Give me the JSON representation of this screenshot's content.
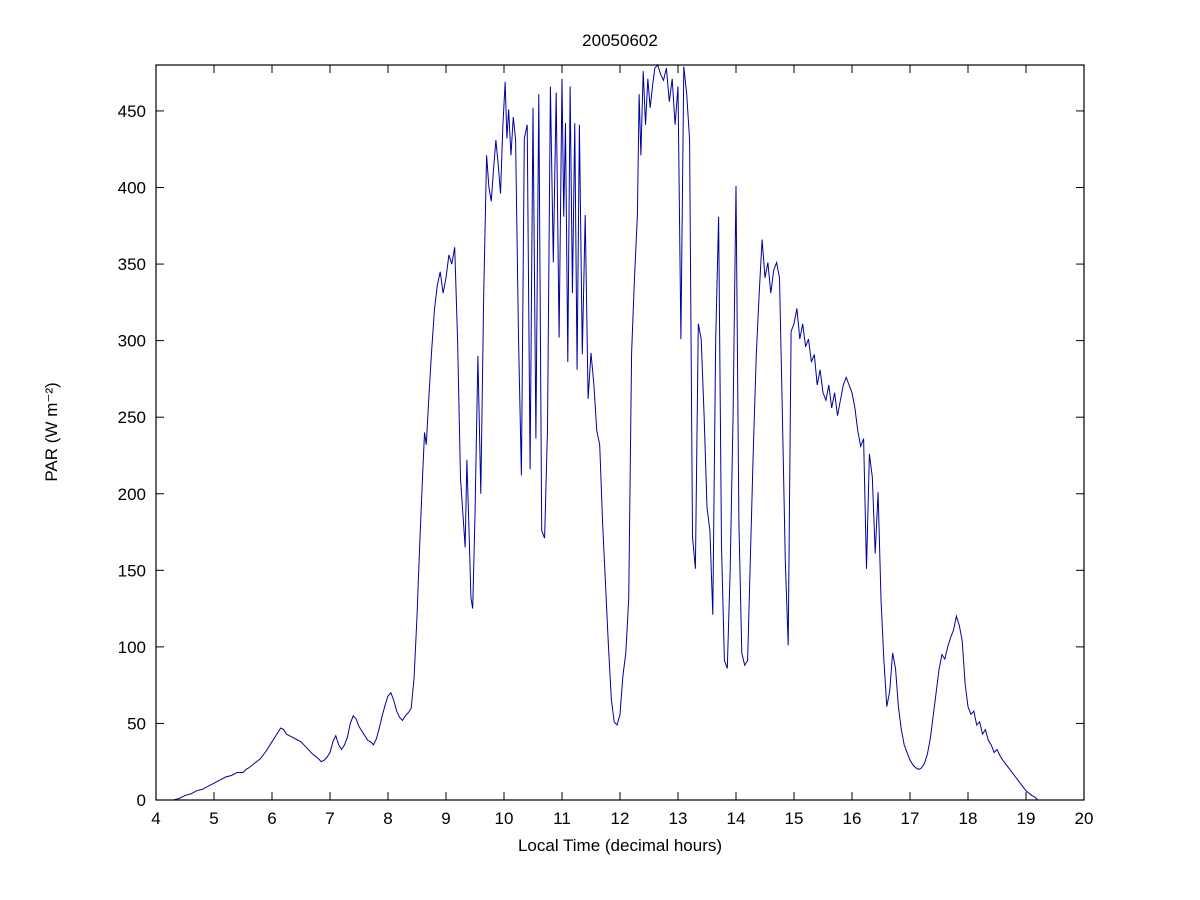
{
  "figure": {
    "background": "#ffffff"
  },
  "chart_data": {
    "type": "line",
    "title": "20050602",
    "xlabel": "Local Time (decimal hours)",
    "ylabel": "PAR (W m⁻²)",
    "xlim": [
      4,
      20
    ],
    "ylim": [
      0,
      480
    ],
    "xticks": [
      4,
      5,
      6,
      7,
      8,
      9,
      10,
      11,
      12,
      13,
      14,
      15,
      16,
      17,
      18,
      19,
      20
    ],
    "yticks": [
      0,
      50,
      100,
      150,
      200,
      250,
      300,
      350,
      400,
      450
    ],
    "grid": false,
    "legend": "none",
    "line_color": "#0000a0",
    "axis_color": "#000000",
    "series": [
      {
        "name": "PAR",
        "points": [
          [
            4.3,
            0
          ],
          [
            4.4,
            1
          ],
          [
            4.5,
            3
          ],
          [
            4.6,
            4
          ],
          [
            4.7,
            6
          ],
          [
            4.8,
            7
          ],
          [
            4.9,
            9
          ],
          [
            5.0,
            11
          ],
          [
            5.1,
            13
          ],
          [
            5.2,
            15
          ],
          [
            5.3,
            16
          ],
          [
            5.4,
            18
          ],
          [
            5.5,
            18
          ],
          [
            5.55,
            20
          ],
          [
            5.6,
            21
          ],
          [
            5.7,
            24
          ],
          [
            5.8,
            27
          ],
          [
            5.9,
            32
          ],
          [
            6.0,
            38
          ],
          [
            6.05,
            41
          ],
          [
            6.1,
            44
          ],
          [
            6.15,
            47
          ],
          [
            6.2,
            46
          ],
          [
            6.25,
            43
          ],
          [
            6.3,
            42
          ],
          [
            6.35,
            41
          ],
          [
            6.4,
            40
          ],
          [
            6.5,
            38
          ],
          [
            6.6,
            34
          ],
          [
            6.7,
            30
          ],
          [
            6.8,
            27
          ],
          [
            6.85,
            25
          ],
          [
            6.9,
            26
          ],
          [
            6.95,
            28
          ],
          [
            7.0,
            31
          ],
          [
            7.05,
            38
          ],
          [
            7.1,
            42
          ],
          [
            7.15,
            36
          ],
          [
            7.2,
            33
          ],
          [
            7.25,
            36
          ],
          [
            7.3,
            41
          ],
          [
            7.35,
            50
          ],
          [
            7.4,
            55
          ],
          [
            7.45,
            53
          ],
          [
            7.5,
            48
          ],
          [
            7.55,
            45
          ],
          [
            7.6,
            42
          ],
          [
            7.65,
            39
          ],
          [
            7.7,
            38
          ],
          [
            7.75,
            36
          ],
          [
            7.8,
            40
          ],
          [
            7.85,
            47
          ],
          [
            7.9,
            55
          ],
          [
            7.95,
            62
          ],
          [
            8.0,
            68
          ],
          [
            8.05,
            70
          ],
          [
            8.1,
            65
          ],
          [
            8.15,
            58
          ],
          [
            8.2,
            54
          ],
          [
            8.25,
            52
          ],
          [
            8.3,
            55
          ],
          [
            8.35,
            57
          ],
          [
            8.4,
            60
          ],
          [
            8.45,
            80
          ],
          [
            8.5,
            120
          ],
          [
            8.55,
            170
          ],
          [
            8.6,
            215
          ],
          [
            8.63,
            240
          ],
          [
            8.66,
            232
          ],
          [
            8.7,
            260
          ],
          [
            8.75,
            292
          ],
          [
            8.8,
            320
          ],
          [
            8.85,
            336
          ],
          [
            8.9,
            345
          ],
          [
            8.95,
            331
          ],
          [
            9.0,
            341
          ],
          [
            9.05,
            356
          ],
          [
            9.1,
            350
          ],
          [
            9.15,
            361
          ],
          [
            9.2,
            300
          ],
          [
            9.25,
            210
          ],
          [
            9.3,
            182
          ],
          [
            9.33,
            165
          ],
          [
            9.36,
            222
          ],
          [
            9.4,
            172
          ],
          [
            9.43,
            132
          ],
          [
            9.46,
            125
          ],
          [
            9.5,
            186
          ],
          [
            9.55,
            290
          ],
          [
            9.6,
            200
          ],
          [
            9.65,
            330
          ],
          [
            9.7,
            421
          ],
          [
            9.74,
            400
          ],
          [
            9.78,
            391
          ],
          [
            9.82,
            412
          ],
          [
            9.86,
            431
          ],
          [
            9.9,
            415
          ],
          [
            9.94,
            396
          ],
          [
            9.98,
            440
          ],
          [
            10.02,
            469
          ],
          [
            10.05,
            432
          ],
          [
            10.08,
            451
          ],
          [
            10.12,
            421
          ],
          [
            10.16,
            446
          ],
          [
            10.2,
            431
          ],
          [
            10.25,
            302
          ],
          [
            10.3,
            212
          ],
          [
            10.35,
            432
          ],
          [
            10.4,
            441
          ],
          [
            10.45,
            216
          ],
          [
            10.5,
            452
          ],
          [
            10.55,
            236
          ],
          [
            10.6,
            461
          ],
          [
            10.65,
            176
          ],
          [
            10.7,
            171
          ],
          [
            10.75,
            242
          ],
          [
            10.8,
            466
          ],
          [
            10.85,
            351
          ],
          [
            10.9,
            462
          ],
          [
            10.95,
            302
          ],
          [
            11.0,
            471
          ],
          [
            11.03,
            381
          ],
          [
            11.06,
            442
          ],
          [
            11.1,
            286
          ],
          [
            11.14,
            466
          ],
          [
            11.18,
            331
          ],
          [
            11.22,
            442
          ],
          [
            11.26,
            281
          ],
          [
            11.3,
            441
          ],
          [
            11.35,
            291
          ],
          [
            11.4,
            382
          ],
          [
            11.45,
            262
          ],
          [
            11.5,
            292
          ],
          [
            11.55,
            271
          ],
          [
            11.6,
            241
          ],
          [
            11.65,
            232
          ],
          [
            11.7,
            181
          ],
          [
            11.75,
            141
          ],
          [
            11.8,
            101
          ],
          [
            11.85,
            66
          ],
          [
            11.9,
            51
          ],
          [
            11.95,
            49
          ],
          [
            12.0,
            56
          ],
          [
            12.05,
            81
          ],
          [
            12.1,
            96
          ],
          [
            12.15,
            131
          ],
          [
            12.2,
            292
          ],
          [
            12.25,
            341
          ],
          [
            12.3,
            382
          ],
          [
            12.33,
            461
          ],
          [
            12.36,
            421
          ],
          [
            12.4,
            476
          ],
          [
            12.44,
            441
          ],
          [
            12.48,
            471
          ],
          [
            12.52,
            452
          ],
          [
            12.56,
            466
          ],
          [
            12.6,
            478
          ],
          [
            12.65,
            480
          ],
          [
            12.7,
            474
          ],
          [
            12.75,
            470
          ],
          [
            12.8,
            478
          ],
          [
            12.85,
            456
          ],
          [
            12.9,
            471
          ],
          [
            12.95,
            441
          ],
          [
            13.0,
            466
          ],
          [
            13.05,
            301
          ],
          [
            13.1,
            479
          ],
          [
            13.15,
            461
          ],
          [
            13.2,
            431
          ],
          [
            13.25,
            172
          ],
          [
            13.3,
            151
          ],
          [
            13.35,
            311
          ],
          [
            13.4,
            301
          ],
          [
            13.45,
            251
          ],
          [
            13.5,
            191
          ],
          [
            13.55,
            176
          ],
          [
            13.6,
            121
          ],
          [
            13.65,
            301
          ],
          [
            13.7,
            381
          ],
          [
            13.75,
            166
          ],
          [
            13.8,
            91
          ],
          [
            13.85,
            86
          ],
          [
            13.9,
            151
          ],
          [
            13.95,
            252
          ],
          [
            14.0,
            401
          ],
          [
            14.05,
            181
          ],
          [
            14.1,
            96
          ],
          [
            14.15,
            88
          ],
          [
            14.2,
            91
          ],
          [
            14.25,
            161
          ],
          [
            14.3,
            231
          ],
          [
            14.35,
            291
          ],
          [
            14.4,
            331
          ],
          [
            14.45,
            366
          ],
          [
            14.5,
            341
          ],
          [
            14.55,
            351
          ],
          [
            14.6,
            331
          ],
          [
            14.65,
            346
          ],
          [
            14.7,
            351
          ],
          [
            14.75,
            341
          ],
          [
            14.8,
            251
          ],
          [
            14.85,
            156
          ],
          [
            14.9,
            101
          ],
          [
            14.95,
            306
          ],
          [
            15.0,
            311
          ],
          [
            15.05,
            321
          ],
          [
            15.1,
            301
          ],
          [
            15.15,
            311
          ],
          [
            15.2,
            296
          ],
          [
            15.25,
            301
          ],
          [
            15.3,
            286
          ],
          [
            15.35,
            291
          ],
          [
            15.4,
            271
          ],
          [
            15.45,
            281
          ],
          [
            15.5,
            266
          ],
          [
            15.55,
            261
          ],
          [
            15.6,
            271
          ],
          [
            15.65,
            256
          ],
          [
            15.7,
            266
          ],
          [
            15.75,
            251
          ],
          [
            15.8,
            261
          ],
          [
            15.85,
            271
          ],
          [
            15.9,
            276
          ],
          [
            15.95,
            271
          ],
          [
            16.0,
            266
          ],
          [
            16.05,
            256
          ],
          [
            16.1,
            241
          ],
          [
            16.15,
            231
          ],
          [
            16.2,
            236
          ],
          [
            16.25,
            151
          ],
          [
            16.3,
            226
          ],
          [
            16.35,
            211
          ],
          [
            16.4,
            161
          ],
          [
            16.45,
            201
          ],
          [
            16.5,
            131
          ],
          [
            16.55,
            91
          ],
          [
            16.6,
            61
          ],
          [
            16.65,
            71
          ],
          [
            16.7,
            96
          ],
          [
            16.75,
            86
          ],
          [
            16.8,
            61
          ],
          [
            16.85,
            46
          ],
          [
            16.9,
            36
          ],
          [
            16.95,
            31
          ],
          [
            17.0,
            26
          ],
          [
            17.05,
            23
          ],
          [
            17.1,
            21
          ],
          [
            17.15,
            20
          ],
          [
            17.2,
            21
          ],
          [
            17.25,
            24
          ],
          [
            17.3,
            30
          ],
          [
            17.35,
            40
          ],
          [
            17.4,
            55
          ],
          [
            17.45,
            70
          ],
          [
            17.5,
            85
          ],
          [
            17.55,
            95
          ],
          [
            17.6,
            92
          ],
          [
            17.65,
            100
          ],
          [
            17.7,
            106
          ],
          [
            17.75,
            111
          ],
          [
            17.8,
            120
          ],
          [
            17.85,
            114
          ],
          [
            17.9,
            104
          ],
          [
            17.95,
            76
          ],
          [
            18.0,
            61
          ],
          [
            18.05,
            56
          ],
          [
            18.1,
            58
          ],
          [
            18.15,
            49
          ],
          [
            18.2,
            51
          ],
          [
            18.25,
            43
          ],
          [
            18.3,
            46
          ],
          [
            18.35,
            39
          ],
          [
            18.4,
            36
          ],
          [
            18.45,
            31
          ],
          [
            18.5,
            33
          ],
          [
            18.55,
            29
          ],
          [
            18.6,
            26
          ],
          [
            18.7,
            21
          ],
          [
            18.8,
            16
          ],
          [
            18.9,
            11
          ],
          [
            19.0,
            6
          ],
          [
            19.1,
            3
          ],
          [
            19.15,
            2
          ],
          [
            19.2,
            0
          ]
        ]
      }
    ]
  }
}
